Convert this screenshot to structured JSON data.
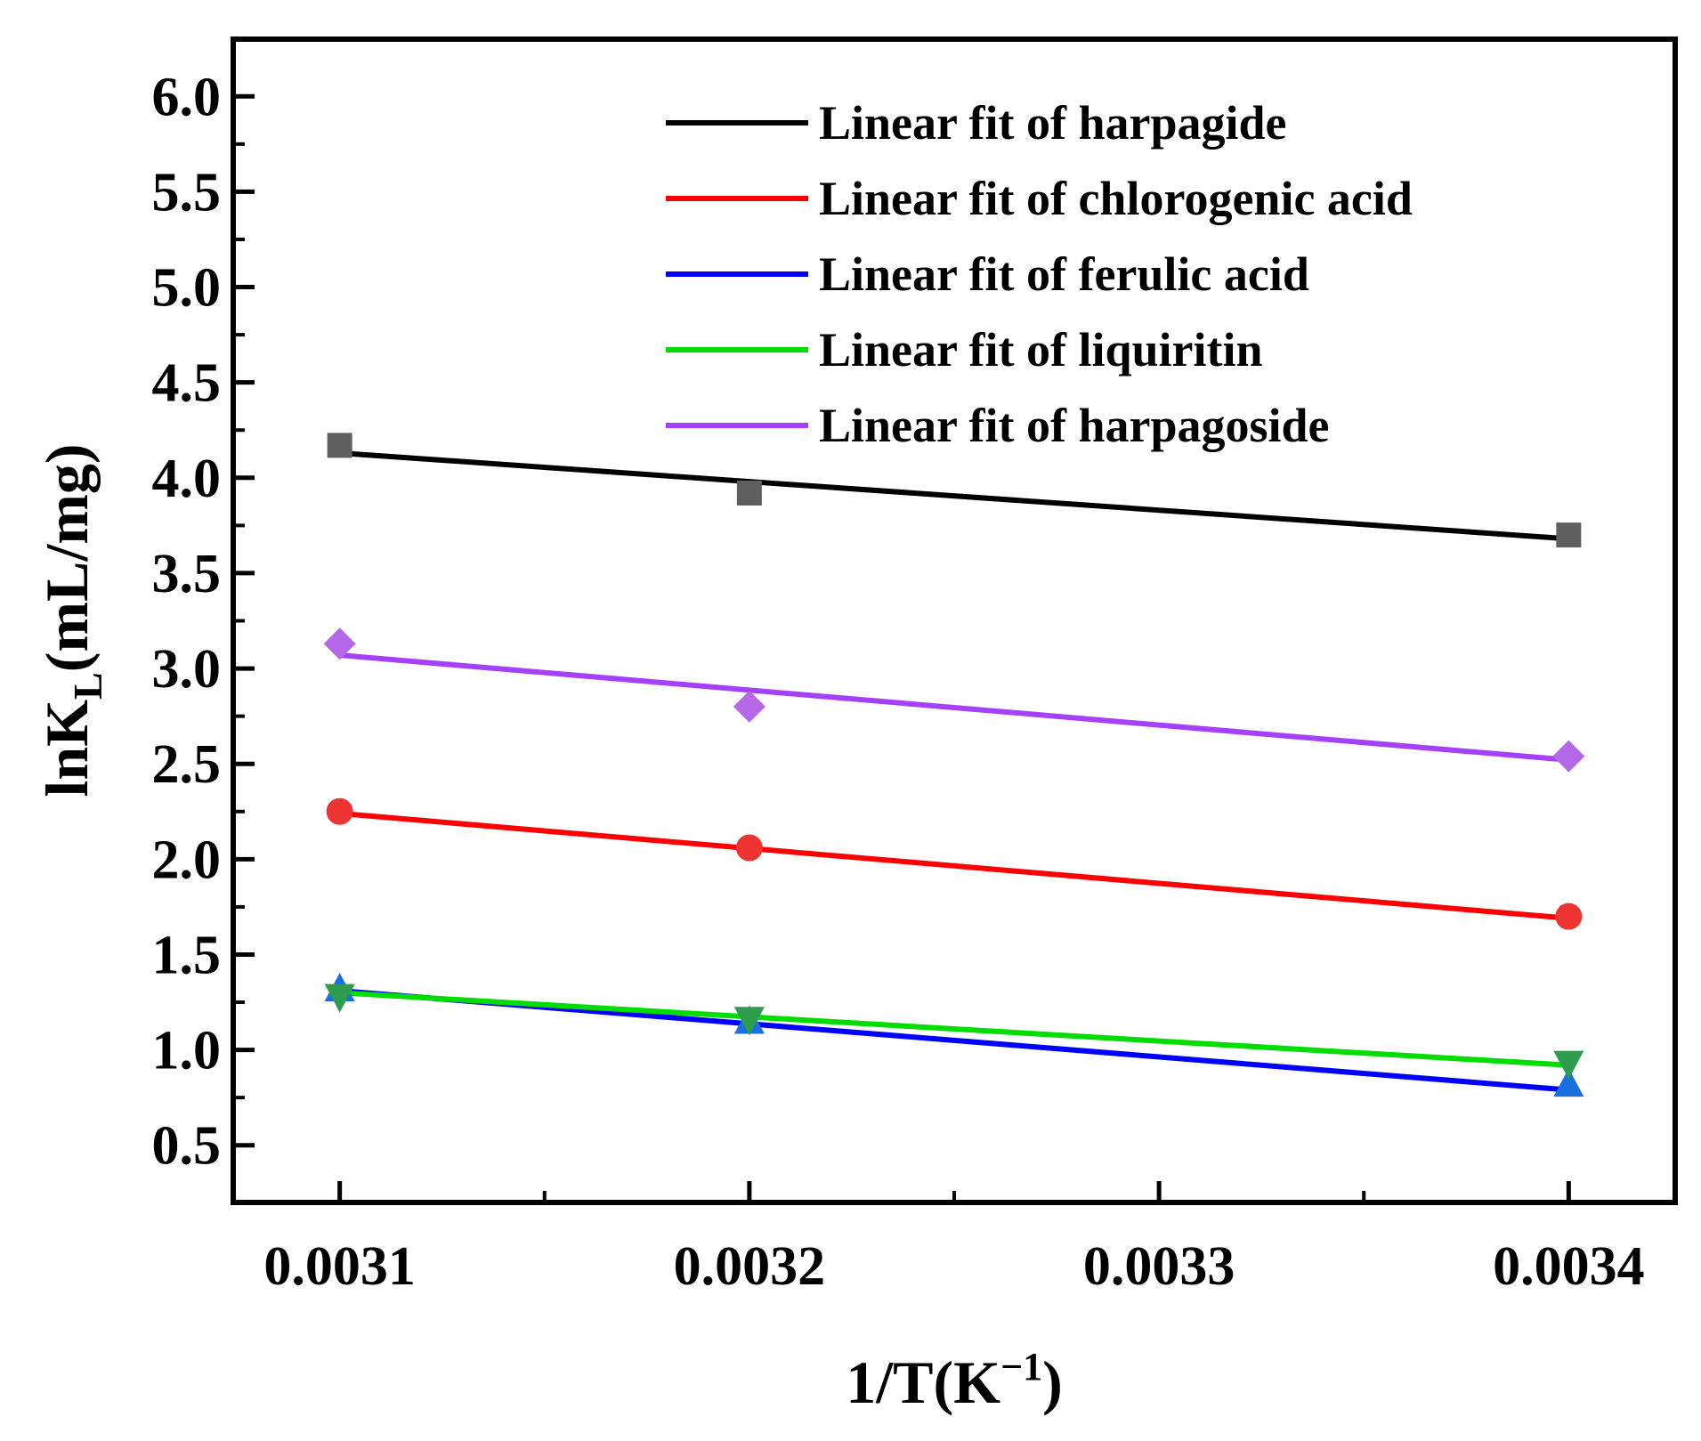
{
  "chart_data": {
    "type": "scatter",
    "xlabel": {
      "main": "1/T(K",
      "sup": "−1",
      "tail": ")"
    },
    "ylabel": {
      "main": "lnK",
      "sub": "L",
      "tail": "(mL/mg)"
    },
    "xlim": [
      0.003074,
      0.003426
    ],
    "ylim": [
      0.2,
      6.3
    ],
    "xticks": [
      0.0031,
      0.0032,
      0.0033,
      0.0034
    ],
    "xtick_labels": [
      "0.0031",
      "0.0032",
      "0.0033",
      "0.0034"
    ],
    "yticks": [
      0.5,
      1.0,
      1.5,
      2.0,
      2.5,
      3.0,
      3.5,
      4.0,
      4.5,
      5.0,
      5.5,
      6.0
    ],
    "ytick_labels": [
      "0.5",
      "1.0",
      "1.5",
      "2.0",
      "2.5",
      "3.0",
      "3.5",
      "4.0",
      "4.5",
      "5.0",
      "5.5",
      "6.0"
    ],
    "legend_position": "top-right",
    "series": [
      {
        "name": "harpagide",
        "legend": "Linear fit of harpagide",
        "marker": "square",
        "marker_color": "#5f5f5f",
        "line_color": "#000000",
        "x": [
          0.0031,
          0.0032,
          0.0034
        ],
        "y": [
          4.17,
          3.92,
          3.7
        ],
        "fit": [
          [
            0.0031,
            4.13
          ],
          [
            0.0034,
            3.68
          ]
        ]
      },
      {
        "name": "chlorogenic acid",
        "legend": "Linear fit of chlorogenic acid",
        "marker": "circle",
        "marker_color": "#ee3333",
        "line_color": "#ff0000",
        "x": [
          0.0031,
          0.0032,
          0.0034
        ],
        "y": [
          2.25,
          2.06,
          1.7
        ],
        "fit": [
          [
            0.0031,
            2.24
          ],
          [
            0.0034,
            1.69
          ]
        ]
      },
      {
        "name": "ferulic acid",
        "legend": "Linear fit of ferulic acid",
        "marker": "triangle-up",
        "marker_color": "#1a6fe0",
        "line_color": "#0000ff",
        "x": [
          0.0031,
          0.0032,
          0.0034
        ],
        "y": [
          1.32,
          1.15,
          0.82
        ],
        "fit": [
          [
            0.0031,
            1.31
          ],
          [
            0.0034,
            0.79
          ]
        ]
      },
      {
        "name": "liquiritin",
        "legend": "Linear fit of liquiritin",
        "marker": "triangle-down",
        "marker_color": "#2e9c4e",
        "line_color": "#00dd00",
        "x": [
          0.0031,
          0.0032,
          0.0034
        ],
        "y": [
          1.28,
          1.16,
          0.93
        ],
        "fit": [
          [
            0.0031,
            1.3
          ],
          [
            0.0034,
            0.92
          ]
        ]
      },
      {
        "name": "harpagoside",
        "legend": "Linear fit of harpagoside",
        "marker": "diamond",
        "marker_color": "#b569e8",
        "line_color": "#a640ff",
        "x": [
          0.0031,
          0.0032,
          0.0034
        ],
        "y": [
          3.13,
          2.8,
          2.54
        ],
        "fit": [
          [
            0.0031,
            3.07
          ],
          [
            0.0034,
            2.52
          ]
        ]
      }
    ]
  }
}
